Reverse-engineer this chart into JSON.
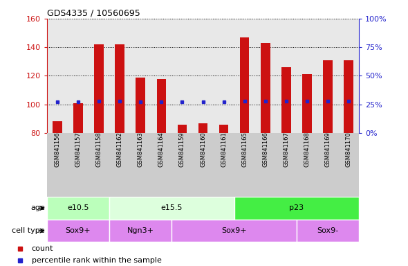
{
  "title": "GDS4335 / 10560695",
  "samples": [
    "GSM841156",
    "GSM841157",
    "GSM841158",
    "GSM841162",
    "GSM841163",
    "GSM841164",
    "GSM841159",
    "GSM841160",
    "GSM841161",
    "GSM841165",
    "GSM841166",
    "GSM841167",
    "GSM841168",
    "GSM841169",
    "GSM841170"
  ],
  "counts": [
    88,
    101,
    142,
    142,
    119,
    118,
    86,
    87,
    86,
    147,
    143,
    126,
    121,
    131,
    131
  ],
  "percentiles_pct": [
    27,
    27,
    28,
    28,
    27,
    27,
    27,
    27,
    27,
    28,
    28,
    28,
    28,
    28,
    28
  ],
  "ylim_left": [
    80,
    160
  ],
  "ylim_right": [
    0,
    100
  ],
  "yticks_left": [
    80,
    100,
    120,
    140,
    160
  ],
  "yticks_right": [
    0,
    25,
    50,
    75,
    100
  ],
  "ytick_labels_right": [
    "0%",
    "25%",
    "50%",
    "75%",
    "100%"
  ],
  "bar_color": "#cc1111",
  "dot_color": "#2222cc",
  "age_groups": [
    {
      "label": "e10.5",
      "start": 0,
      "end": 3,
      "color": "#bbffbb"
    },
    {
      "label": "e15.5",
      "start": 3,
      "end": 9,
      "color": "#ddffdd"
    },
    {
      "label": "p23",
      "start": 9,
      "end": 15,
      "color": "#44ee44"
    }
  ],
  "cell_type_groups": [
    {
      "label": "Sox9+",
      "start": 0,
      "end": 3,
      "color": "#dd88ee"
    },
    {
      "label": "Ngn3+",
      "start": 3,
      "end": 6,
      "color": "#dd88ee"
    },
    {
      "label": "Sox9+",
      "start": 6,
      "end": 12,
      "color": "#dd88ee"
    },
    {
      "label": "Sox9-",
      "start": 12,
      "end": 15,
      "color": "#dd88ee"
    }
  ],
  "legend_count_label": "count",
  "legend_pct_label": "percentile rank within the sample",
  "left_axis_color": "#cc1111",
  "right_axis_color": "#2222cc",
  "background_color": "#ffffff",
  "plot_bg_color": "#e8e8e8",
  "samples_bg_color": "#cccccc",
  "bar_width": 0.45
}
